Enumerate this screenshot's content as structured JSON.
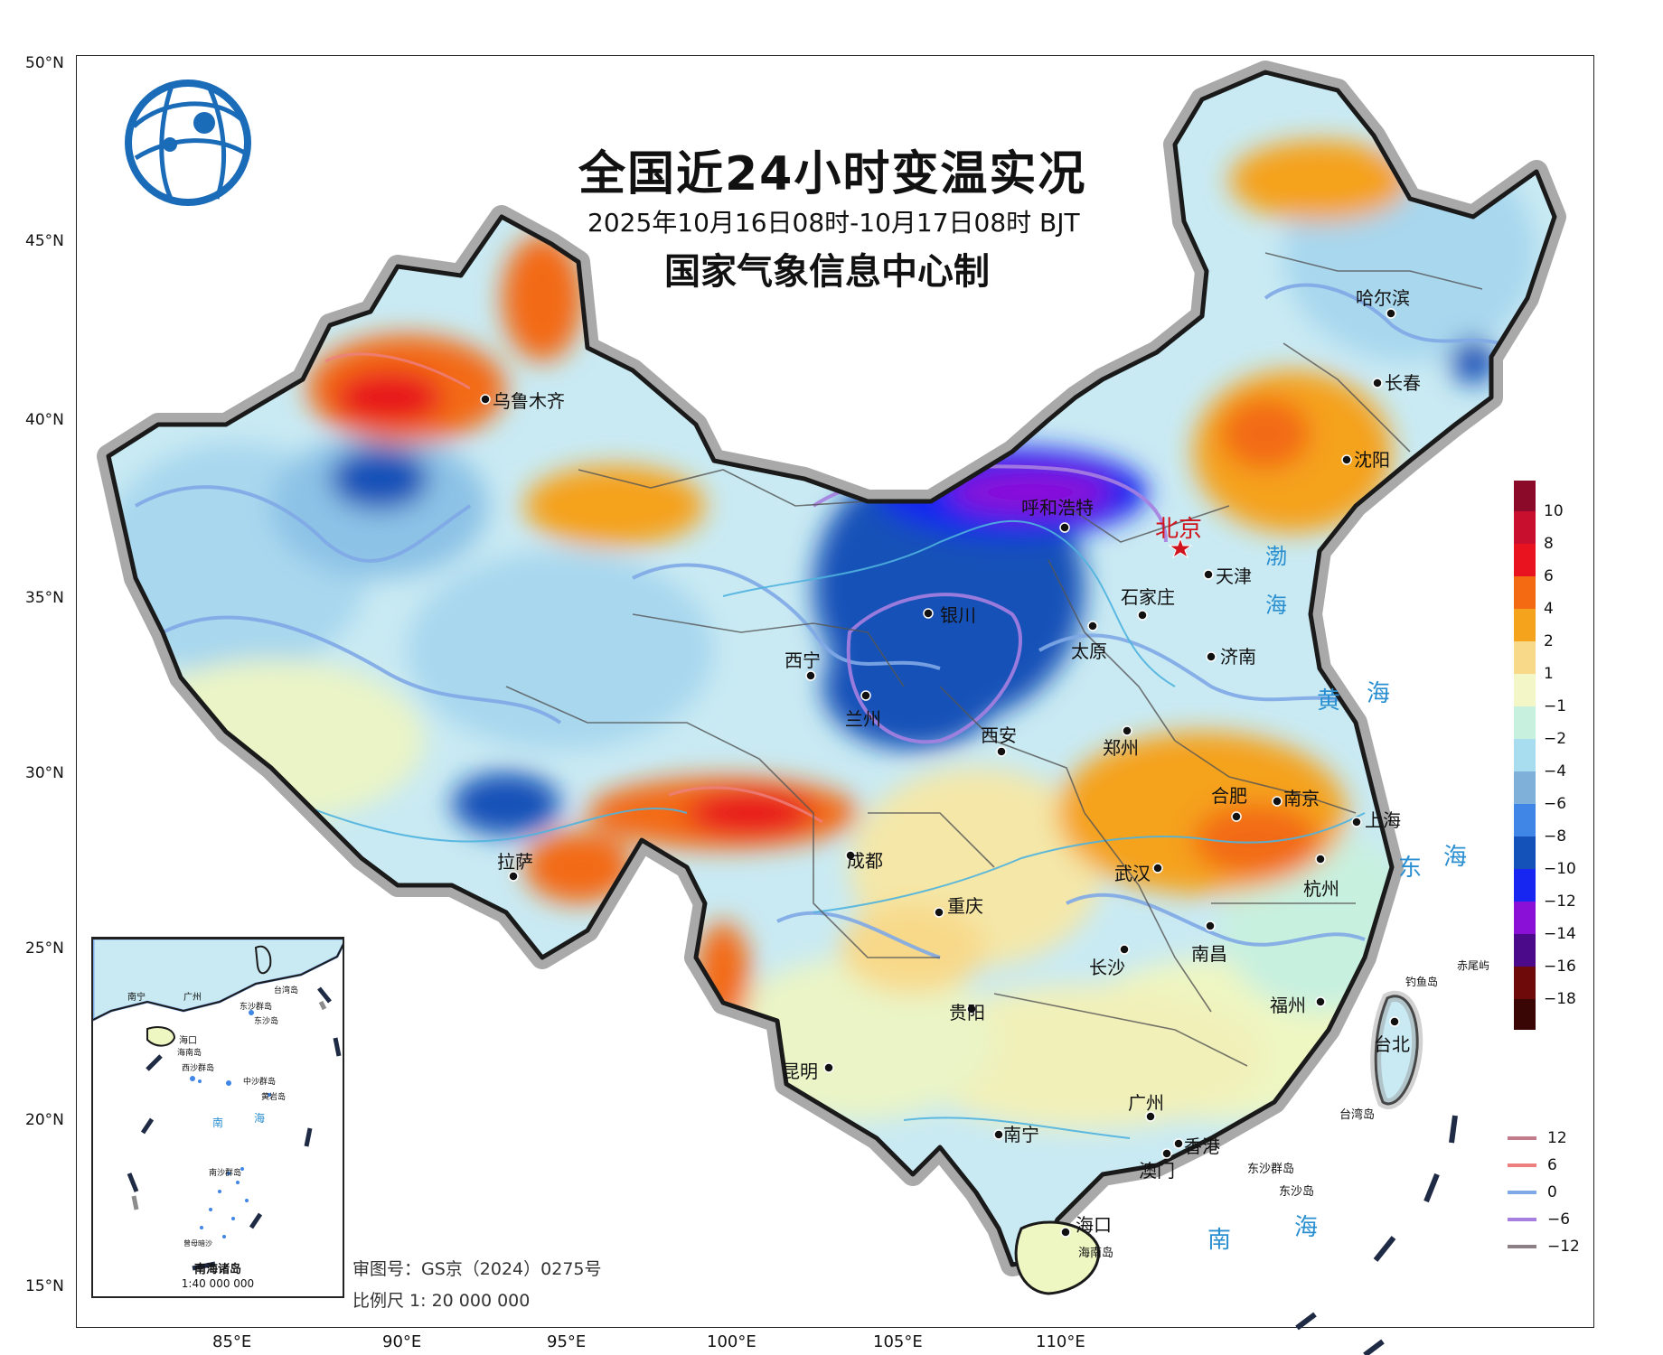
{
  "map": {
    "title": "全国近24小时变温实况",
    "subtitle": "2025年10月16日08时-10月17日08时 BJT",
    "producer": "国家气象信息中心制",
    "review_no": "审图号：GS京（2024）0275号",
    "scale": "比例尺 1: 20 000 000"
  },
  "axes": {
    "lat_labels": [
      "50°N",
      "45°N",
      "40°N",
      "35°N",
      "30°N",
      "25°N",
      "20°N",
      "15°N"
    ],
    "lon_labels": [
      "85°E",
      "90°E",
      "95°E",
      "100°E",
      "105°E",
      "110°E"
    ]
  },
  "legend": {
    "fill_labels": [
      "10",
      "8",
      "6",
      "4",
      "2",
      "1",
      "−1",
      "−2",
      "−4",
      "−6",
      "−8",
      "−10",
      "−12",
      "−14",
      "−16",
      "−18"
    ],
    "fill_colors": [
      "#8b0a2a",
      "#c8102e",
      "#e8131f",
      "#f36a12",
      "#f5a21c",
      "#f8d98a",
      "#f3f6c6",
      "#c8f0df",
      "#a8dcef",
      "#7fb0da",
      "#3f86e6",
      "#1451b8",
      "#1726f0",
      "#8a10d8",
      "#4b0a8a",
      "#6e0a0a",
      "#3a0505"
    ],
    "line_items": [
      {
        "label": "12",
        "color": "#c27c8c"
      },
      {
        "label": "6",
        "color": "#ee7f7f"
      },
      {
        "label": "0",
        "color": "#7fa9e6"
      },
      {
        "label": "−6",
        "color": "#a67fe0"
      },
      {
        "label": "−12",
        "color": "#8c7f86"
      }
    ]
  },
  "cities": {
    "urumqi": "乌鲁木齐",
    "harbin": "哈尔滨",
    "changchun": "长春",
    "shenyang": "沈阳",
    "hohhot": "呼和浩特",
    "beijing": "北京",
    "tianjin": "天津",
    "shijiazhuang": "石家庄",
    "yinchuan": "银川",
    "taiyuan": "太原",
    "jinan": "济南",
    "xining": "西宁",
    "lanzhou": "兰州",
    "xian": "西安",
    "zhengzhou": "郑州",
    "hefei": "合肥",
    "nanjing": "南京",
    "shanghai": "上海",
    "lhasa": "拉萨",
    "chengdu": "成都",
    "wuhan": "武汉",
    "hangzhou": "杭州",
    "chongqing": "重庆",
    "nanchang": "南昌",
    "changsha": "长沙",
    "guiyang": "贵阳",
    "fuzhou": "福州",
    "kunming": "昆明",
    "taipei": "台北",
    "guangzhou": "广州",
    "nanning": "南宁",
    "hongkong": "香港",
    "macau": "澳门",
    "haikou": "海口"
  },
  "places": {
    "hainan": "海南岛",
    "dongsha": "东沙群岛",
    "dongsha_is": "东沙岛",
    "diaoyu": "钓鱼岛",
    "chiwei": "赤尾屿",
    "taiwan": "台湾岛"
  },
  "seas": {
    "bo": "渤",
    "bo2": "海",
    "huang1": "黄",
    "huang2": "海",
    "dong1": "东",
    "dong2": "海",
    "nan1": "南",
    "nan2": "海"
  },
  "inset": {
    "title": "南海诸岛",
    "scale": "1:40 000 000",
    "labels": [
      "南宁",
      "广州",
      "台湾岛",
      "东沙群岛",
      "东沙岛",
      "海口",
      "海南岛",
      "西沙群岛",
      "中沙群岛",
      "黄岩岛",
      "南",
      "海",
      "南沙群岛",
      "曾母暗沙"
    ]
  },
  "colors": {
    "frame": "#222222",
    "border_shadow": "#8c8c8c",
    "city_label_color": "#111111",
    "capital_color": "#d0141e",
    "sea_label_color": "#2a8fd0"
  }
}
